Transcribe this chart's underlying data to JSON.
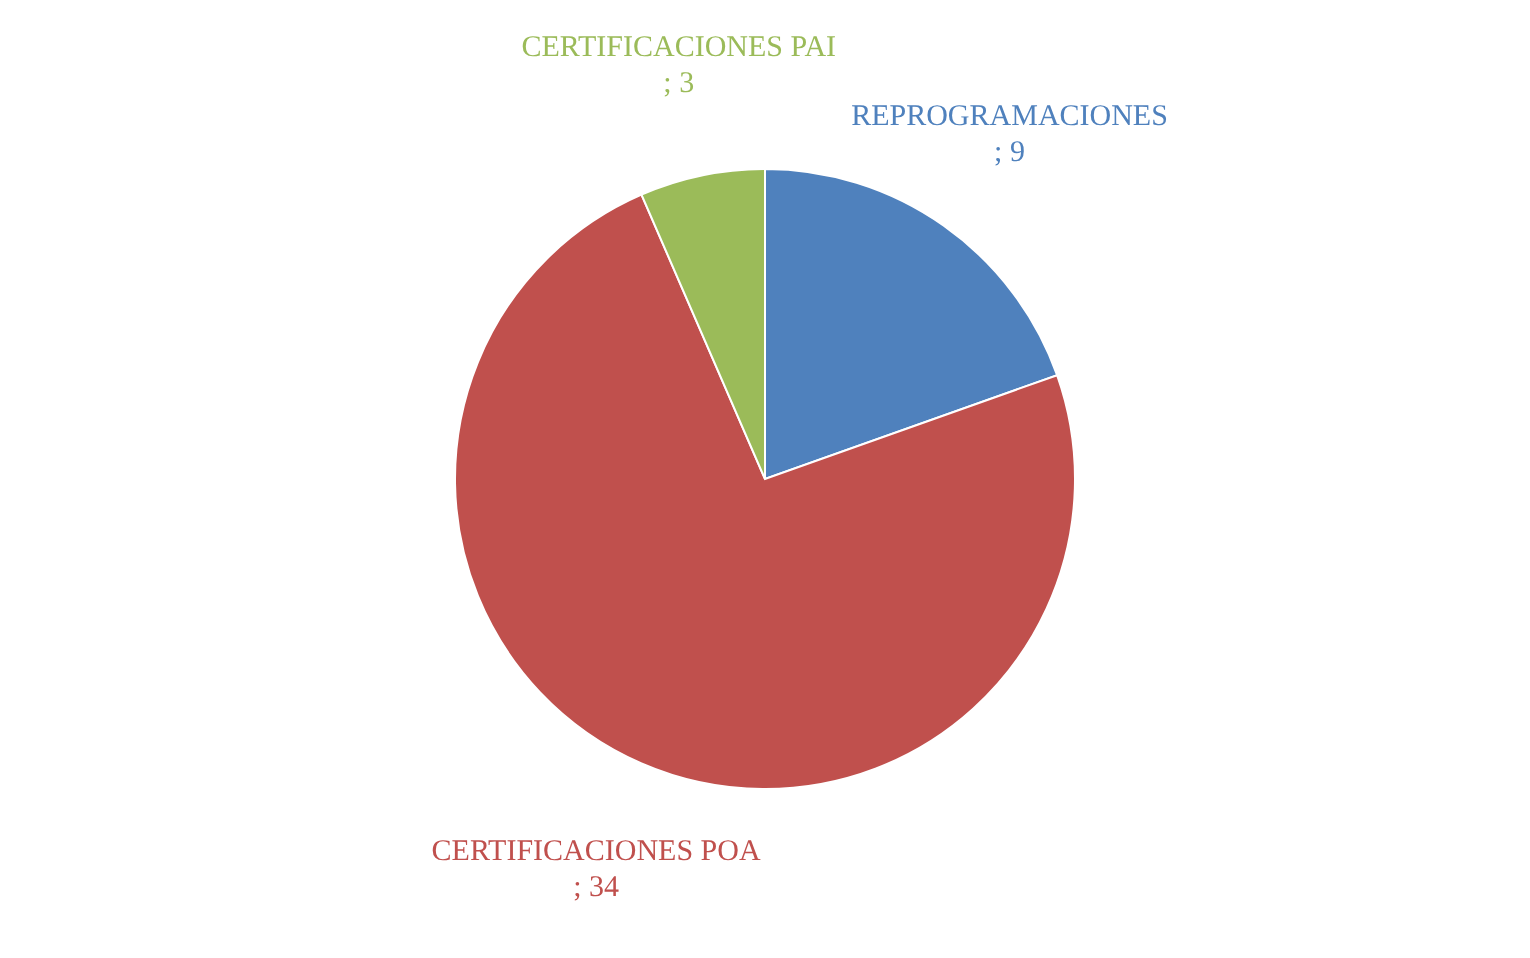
{
  "chart_data": {
    "type": "pie",
    "categories": [
      "REPROGRAMACIONES",
      "CERTIFICACIONES POA",
      "CERTIFICACIONES PAI"
    ],
    "values": [
      9,
      34,
      3
    ],
    "value_labels": [
      "; 9",
      "; 34",
      "; 3"
    ],
    "colors": [
      "#4f81bd",
      "#c0504d",
      "#9bbb59"
    ],
    "legend": false
  }
}
